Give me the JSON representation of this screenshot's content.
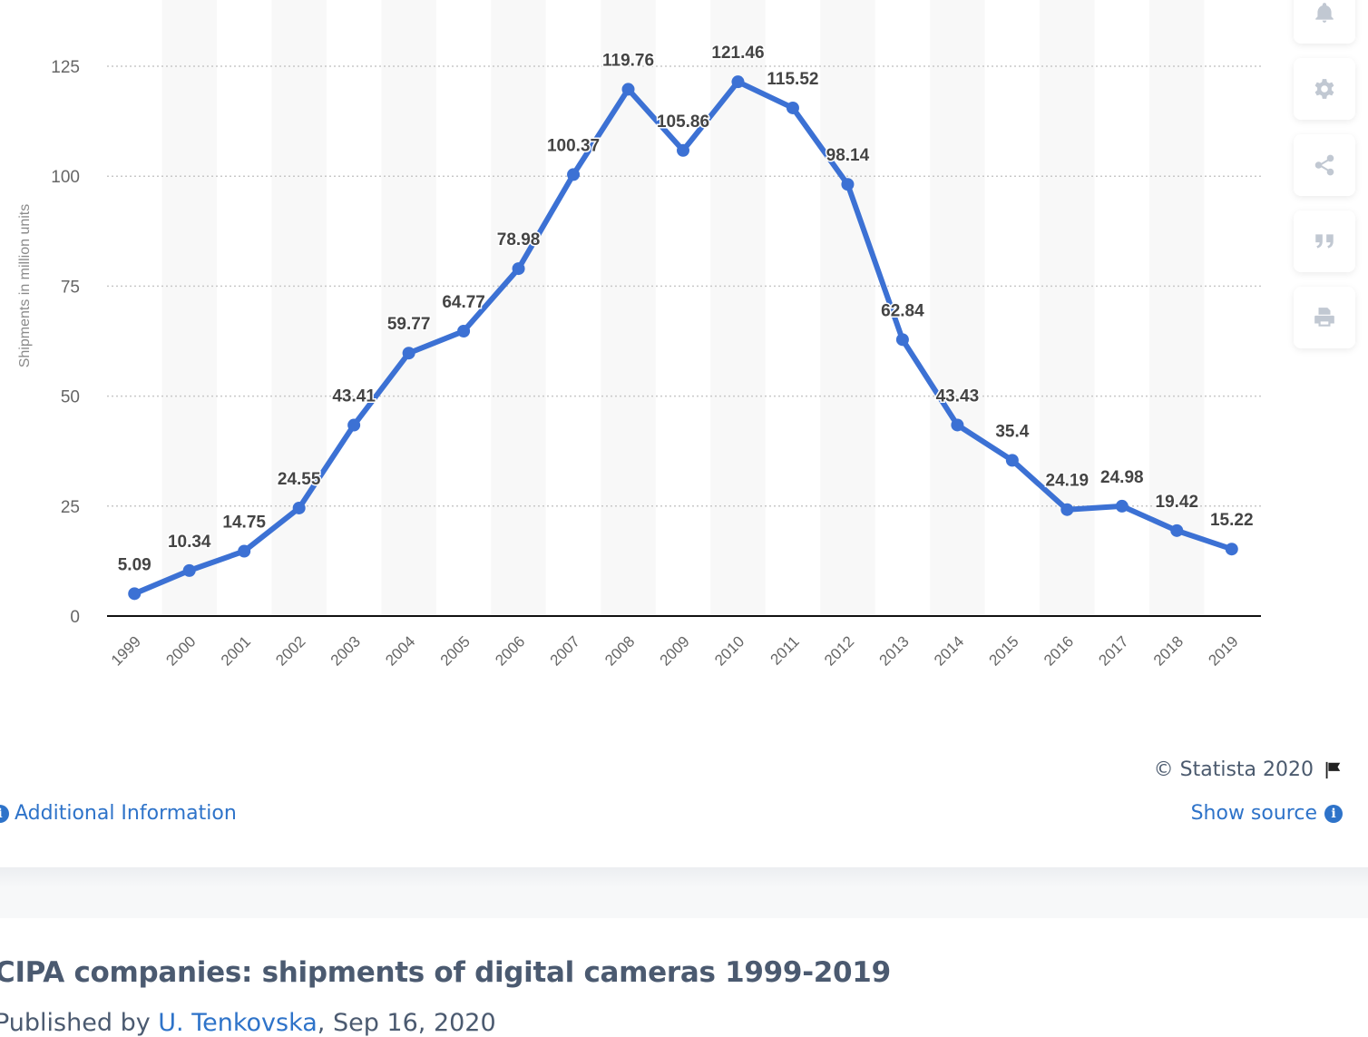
{
  "chart_data": {
    "type": "line",
    "title": "",
    "xlabel": "",
    "ylabel": "Shipments in million units",
    "categories": [
      "1999",
      "2000",
      "2001",
      "2002",
      "2003",
      "2004",
      "2005",
      "2006",
      "2007",
      "2008",
      "2009",
      "2010",
      "2011",
      "2012",
      "2013",
      "2014",
      "2015",
      "2016",
      "2017",
      "2018",
      "2019"
    ],
    "series": [
      {
        "name": "Shipments",
        "color": "#3c71d4",
        "values": [
          5.09,
          10.34,
          14.75,
          24.55,
          43.41,
          59.77,
          64.77,
          78.98,
          100.37,
          119.76,
          105.86,
          121.46,
          115.52,
          98.14,
          62.84,
          43.43,
          35.4,
          24.19,
          24.98,
          19.42,
          15.22
        ],
        "labels": [
          "5.09",
          "10.34",
          "14.75",
          "24.55",
          "43.41",
          "59.77",
          "64.77",
          "78.98",
          "100.37",
          "119.76",
          "105.86",
          "121.46",
          "115.52",
          "98.14",
          "62.84",
          "43.43",
          "35.4",
          "24.19",
          "24.98",
          "19.42",
          "15.22"
        ]
      }
    ],
    "yticks": [
      0,
      25,
      50,
      75,
      100,
      125
    ],
    "ylim": [
      0,
      125
    ],
    "grid": true,
    "legend": "none"
  },
  "tools": [
    {
      "icon": "bell-icon",
      "label": "Notifications"
    },
    {
      "icon": "gear-icon",
      "label": "Settings"
    },
    {
      "icon": "share-icon",
      "label": "Share"
    },
    {
      "icon": "quote-icon",
      "label": "Cite"
    },
    {
      "icon": "print-icon",
      "label": "Print"
    }
  ],
  "footer": {
    "copyright": "© Statista 2020",
    "additional_info": "Additional Information",
    "show_source": "Show source"
  },
  "statistic": {
    "title": "CIPA companies: shipments of digital cameras 1999-2019",
    "published_prefix": "Published by ",
    "author": "U. Tenkovska",
    "date": ", Sep 16, 2020"
  }
}
